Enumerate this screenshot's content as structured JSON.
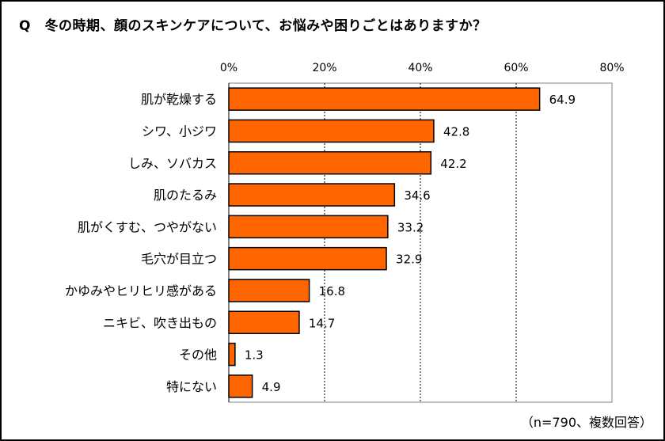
{
  "chart_data": {
    "type": "bar",
    "orientation": "horizontal",
    "title": "Q　冬の時期、顔のスキンケアについて、お悩みや困りごとはありますか？",
    "note": "（n=790、複数回答）",
    "categories": [
      "肌が乾燥する",
      "シワ、小ジワ",
      "しみ、ソバカス",
      "肌のたるみ",
      "肌がくすむ、つやがない",
      "毛穴が目立つ",
      "かゆみやヒリヒリ感がある",
      "ニキビ、吹き出もの",
      "その他",
      "特にない"
    ],
    "values": [
      64.9,
      42.8,
      42.2,
      34.6,
      33.2,
      32.9,
      16.8,
      14.7,
      1.3,
      4.9
    ],
    "xlim": [
      0,
      80
    ],
    "ticks": [
      "0%",
      "20%",
      "40%",
      "60%",
      "80%"
    ],
    "tick_values": [
      0,
      20,
      40,
      60,
      80
    ],
    "axis_position": "top",
    "grid": true,
    "bar_color": "#FF6600",
    "bar_edge_color": "#000000"
  }
}
